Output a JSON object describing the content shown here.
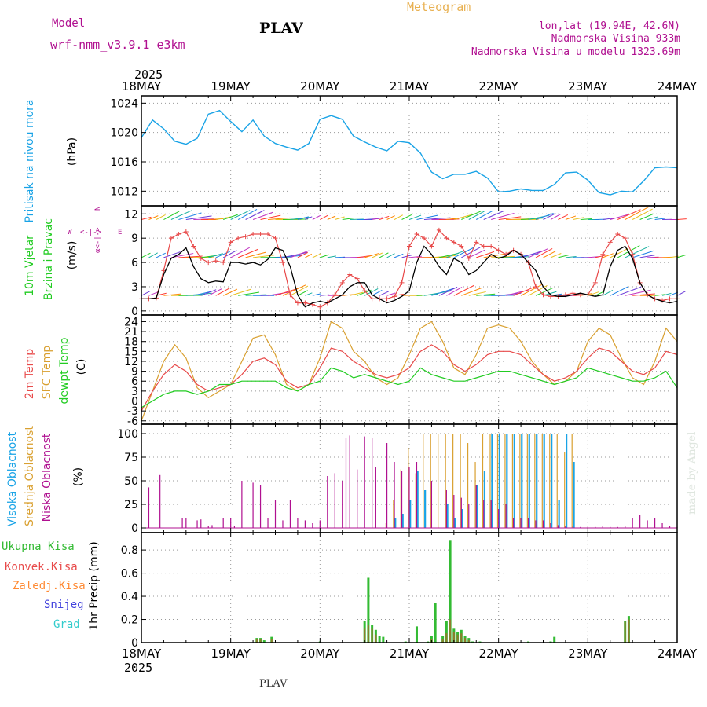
{
  "header": {
    "model_label": "Model",
    "model_name": "wrf-nmm_v3.9.1  e3km",
    "station": "PLAV",
    "title": "Meteogram",
    "lonlat": "lon,lat (19.94E, 42.6N)",
    "elev": "Nadmorska Visina 933m",
    "elev_model": "Nadmorska Visina u modelu 1323.69m",
    "footer_station": "PLAV",
    "credit": "made by Angel"
  },
  "colors": {
    "pressure": "#19a3e6",
    "temp": "#e84a4a",
    "sfc": "#d9a030",
    "dew": "#22cc22",
    "wind": "#000000",
    "gust": "#e84a4a",
    "high": "#19a3e6",
    "mid": "#d9a030",
    "low": "#b01090",
    "total": "#33bb33",
    "conv": "#e84a4a",
    "frz": "#ff8a33",
    "snow": "#4444dd",
    "grad": "#33cccc",
    "wind_label": "#22cc22",
    "dir": "#b01090"
  },
  "chart_data": [
    {
      "type": "line",
      "id": "pressure",
      "title": "Pritisak na nivou mora",
      "ylabel": "(hPa)",
      "ylim": [
        1010,
        1025
      ],
      "yticks": [
        1012,
        1016,
        1020,
        1024
      ],
      "x": [
        0,
        3,
        6,
        9,
        12,
        15,
        18,
        21,
        24,
        27,
        30,
        33,
        36,
        39,
        42,
        45,
        48,
        51,
        54,
        57,
        60,
        63,
        66,
        69,
        72,
        75,
        78,
        81,
        84,
        87,
        90,
        93,
        96,
        99,
        102,
        105,
        108,
        111,
        114,
        117,
        120,
        123,
        126,
        129,
        132,
        135,
        138,
        141,
        144
      ],
      "values": [
        1019.3,
        1021.7,
        1020.5,
        1018.8,
        1018.4,
        1019.2,
        1022.5,
        1023.0,
        1021.5,
        1020.1,
        1021.7,
        1019.5,
        1018.5,
        1018.0,
        1017.6,
        1018.5,
        1021.8,
        1022.3,
        1021.8,
        1019.5,
        1018.7,
        1018.0,
        1017.5,
        1018.8,
        1018.6,
        1017.2,
        1014.6,
        1013.7,
        1014.3,
        1014.3,
        1014.7,
        1013.8,
        1011.9,
        1012.0,
        1012.3,
        1012.1,
        1012.1,
        1012.9,
        1014.5,
        1014.6,
        1013.5,
        1011.8,
        1011.5,
        1012.0,
        1011.9,
        1013.4,
        1015.2,
        1015.3,
        1015.2
      ]
    },
    {
      "type": "line",
      "id": "wind",
      "title": "10m Vjetar Brzina i Pravac",
      "ylabel": "(m/s)",
      "ylim": [
        -0.5,
        13
      ],
      "yticks": [
        0,
        3,
        6,
        9,
        12
      ],
      "direction_legend": [
        "N",
        "S",
        "W",
        "E"
      ],
      "x": [
        0,
        2,
        4,
        6,
        8,
        10,
        12,
        14,
        16,
        18,
        20,
        22,
        24,
        26,
        28,
        30,
        32,
        34,
        36,
        38,
        40,
        42,
        44,
        46,
        48,
        50,
        52,
        54,
        56,
        58,
        60,
        62,
        64,
        66,
        68,
        70,
        72,
        74,
        76,
        78,
        80,
        82,
        84,
        86,
        88,
        90,
        92,
        94,
        96,
        98,
        100,
        102,
        104,
        106,
        108,
        110,
        112,
        114,
        116,
        118,
        120,
        122,
        124,
        126,
        128,
        130,
        132,
        134,
        136,
        138,
        140,
        142,
        144
      ],
      "series": [
        {
          "name": "Brzina",
          "values": [
            1.5,
            1.5,
            1.6,
            4.5,
            6.5,
            7.0,
            7.8,
            5.5,
            4.0,
            3.5,
            3.7,
            3.6,
            6.0,
            6.0,
            5.8,
            6.0,
            5.7,
            6.4,
            7.8,
            7.5,
            5.5,
            2.0,
            0.5,
            1.0,
            1.2,
            1.0,
            1.5,
            2.0,
            3.0,
            3.5,
            3.5,
            2.0,
            1.5,
            1.0,
            1.3,
            1.8,
            2.5,
            6.0,
            8.0,
            7.0,
            5.5,
            4.5,
            6.5,
            6.0,
            4.5,
            5.0,
            6.0,
            7.0,
            6.5,
            6.8,
            7.5,
            7.0,
            6.0,
            5.0,
            3.0,
            2.0,
            1.8,
            1.8,
            2.0,
            2.2,
            2.0,
            1.8,
            2.0,
            5.5,
            7.5,
            8.0,
            6.5,
            3.5,
            2.0,
            1.5,
            1.2,
            1.0,
            1.2
          ]
        },
        {
          "name": "Udar",
          "values": [
            1.5,
            1.5,
            1.6,
            5.0,
            9.0,
            9.5,
            9.8,
            8.0,
            6.5,
            6.0,
            6.2,
            6.0,
            8.5,
            9.0,
            9.2,
            9.5,
            9.5,
            9.5,
            9.0,
            6.0,
            2.0,
            1.0,
            1.0,
            0.8,
            0.5,
            1.0,
            2.0,
            3.5,
            4.5,
            4.0,
            2.5,
            1.5,
            1.5,
            1.5,
            1.8,
            3.5,
            8.0,
            9.5,
            9.0,
            8.0,
            10.0,
            9.0,
            8.5,
            8.0,
            6.5,
            8.5,
            8.0,
            8.0,
            7.5,
            7.0,
            7.5,
            7.0,
            6.0,
            3.0,
            2.0,
            1.8,
            1.8,
            2.0,
            2.2,
            2.0,
            2.0,
            3.5,
            7.0,
            8.5,
            9.5,
            9.0,
            7.0,
            3.5,
            2.0,
            1.5,
            1.3,
            1.5,
            1.5
          ]
        }
      ],
      "arrow_rows_speed": [
        11.3,
        6.6,
        1.9
      ]
    },
    {
      "type": "line",
      "id": "temperature",
      "title": "2m Temp / SFC Temp / dewpt Temp",
      "ylabel": "(C)",
      "ylim": [
        -7,
        26
      ],
      "yticks": [
        -6,
        -3,
        0,
        3,
        6,
        9,
        12,
        15,
        18,
        21,
        24
      ],
      "x": [
        0,
        3,
        6,
        9,
        12,
        15,
        18,
        21,
        24,
        27,
        30,
        33,
        36,
        39,
        42,
        45,
        48,
        51,
        54,
        57,
        60,
        63,
        66,
        69,
        72,
        75,
        78,
        81,
        84,
        87,
        90,
        93,
        96,
        99,
        102,
        105,
        108,
        111,
        114,
        117,
        120,
        123,
        126,
        129,
        132,
        135,
        138,
        141,
        144
      ],
      "series": [
        {
          "name": "2m Temp",
          "values": [
            -3,
            3,
            8,
            11,
            9,
            5,
            3,
            4,
            5,
            8,
            12,
            13,
            11,
            6,
            4,
            5,
            10,
            16,
            15,
            12,
            10,
            8,
            7,
            8,
            10,
            15,
            17,
            15,
            11,
            9,
            11,
            14,
            15,
            15,
            14,
            11,
            8,
            6,
            7,
            9,
            13,
            16,
            15,
            12,
            9,
            8,
            10,
            15,
            14
          ]
        },
        {
          "name": "SFC Temp",
          "values": [
            -6,
            3,
            12,
            17,
            13,
            4,
            1,
            3,
            5,
            12,
            19,
            20,
            14,
            5,
            3,
            5,
            13,
            24,
            22,
            15,
            12,
            7,
            5,
            7,
            14,
            22,
            24,
            18,
            10,
            8,
            14,
            22,
            23,
            22,
            18,
            12,
            8,
            5,
            6,
            9,
            18,
            22,
            20,
            13,
            7,
            5,
            12,
            22,
            18
          ]
        },
        {
          "name": "dewpt Temp",
          "values": [
            -2,
            0,
            2,
            3,
            3,
            2,
            3,
            5,
            5,
            6,
            6,
            6,
            6,
            4,
            3,
            5,
            6,
            10,
            9,
            7,
            8,
            7,
            6,
            5,
            6,
            10,
            8,
            7,
            6,
            6,
            7,
            8,
            9,
            9,
            8,
            7,
            6,
            5,
            6,
            7,
            10,
            9,
            8,
            7,
            6,
            6,
            7,
            9,
            4
          ]
        }
      ]
    },
    {
      "type": "bar",
      "id": "clouds",
      "title": "Visoka / Srednja / Niska Oblacnost",
      "ylabel": "(%)",
      "ylim": [
        -5,
        110
      ],
      "yticks": [
        0,
        25,
        50,
        75,
        100
      ],
      "series": [
        {
          "name": "Niska Oblacnost",
          "x": [
            2,
            5,
            11,
            12,
            15,
            16,
            18,
            19,
            22,
            24,
            25,
            27,
            30,
            32,
            34,
            36,
            38,
            40,
            42,
            44,
            46,
            48,
            50,
            52,
            54,
            55,
            56,
            58,
            60,
            62,
            63,
            66,
            68,
            70,
            72,
            74,
            78,
            82,
            84,
            86,
            88,
            90,
            92,
            94,
            96,
            98,
            100,
            102,
            104,
            106,
            108,
            110,
            112,
            114,
            116,
            118,
            120,
            122,
            124,
            126,
            128,
            130,
            132,
            134,
            136,
            138,
            140,
            142,
            144
          ],
          "values": [
            43,
            56,
            10,
            10,
            8,
            9,
            2,
            3,
            10,
            10,
            2,
            50,
            48,
            45,
            10,
            30,
            8,
            30,
            10,
            8,
            5,
            8,
            55,
            58,
            50,
            95,
            98,
            62,
            97,
            95,
            65,
            90,
            70,
            60,
            65,
            70,
            50,
            40,
            35,
            32,
            25,
            45,
            30,
            30,
            20,
            25,
            10,
            10,
            10,
            8,
            8,
            5,
            3,
            2,
            2,
            1,
            1,
            1,
            2,
            1,
            1,
            2,
            10,
            14,
            8,
            10,
            5,
            2,
            1
          ]
        },
        {
          "name": "Srednja Oblacnost",
          "x": [
            66,
            68,
            70,
            72,
            74,
            76,
            78,
            80,
            82,
            84,
            86,
            88,
            90,
            92,
            94,
            96,
            98,
            100,
            102,
            104,
            106,
            108,
            110,
            112,
            114,
            116
          ],
          "values": [
            5,
            30,
            62,
            85,
            58,
            100,
            100,
            100,
            100,
            100,
            100,
            90,
            70,
            100,
            100,
            100,
            100,
            100,
            100,
            100,
            100,
            100,
            100,
            100,
            80,
            100
          ]
        },
        {
          "name": "Visoka Oblacnost",
          "x": [
            68,
            70,
            72,
            74,
            76,
            82,
            84,
            86,
            90,
            92,
            94,
            96,
            98,
            100,
            102,
            104,
            106,
            108,
            110,
            112,
            114,
            116
          ],
          "values": [
            10,
            15,
            30,
            60,
            40,
            25,
            10,
            20,
            45,
            60,
            100,
            100,
            100,
            100,
            100,
            100,
            100,
            100,
            100,
            30,
            100,
            70
          ]
        }
      ]
    },
    {
      "type": "bar",
      "id": "precip",
      "title": "Ukupna Kisa / Konvek.Kisa / Zaledj.Kisa / Snijeg / Grad",
      "ylabel": "1hr Precip (mm)",
      "ylim": [
        0,
        0.95
      ],
      "yticks": [
        0,
        0.2,
        0.4,
        0.6,
        0.8
      ],
      "series": [
        {
          "name": "Ukupna Kisa",
          "x": [
            31,
            32,
            33,
            35,
            48,
            60,
            61,
            62,
            63,
            64,
            65,
            71,
            74,
            77,
            78,
            79,
            81,
            82,
            83,
            84,
            85,
            86,
            87,
            88,
            89,
            91,
            104,
            110,
            111,
            130,
            131
          ],
          "values": [
            0.04,
            0.04,
            0.02,
            0.05,
            0.01,
            0.19,
            0.56,
            0.15,
            0.11,
            0.06,
            0.05,
            0.01,
            0.14,
            0.01,
            0.06,
            0.34,
            0.06,
            0.19,
            0.88,
            0.12,
            0.09,
            0.11,
            0.06,
            0.04,
            0.01,
            0.01,
            0.01,
            0.01,
            0.05,
            0.19,
            0.23
          ]
        },
        {
          "name": "Konvek.Kisa",
          "x": [
            31,
            32,
            35,
            60,
            61,
            62,
            63,
            78,
            81,
            82,
            83,
            84,
            85,
            86,
            87,
            88,
            130,
            131
          ],
          "values": [
            0.03,
            0.03,
            0.03,
            0.12,
            0.15,
            0.12,
            0.07,
            0.03,
            0.03,
            0.08,
            0.2,
            0.09,
            0.07,
            0.08,
            0.04,
            0.02,
            0.18,
            0.2
          ]
        }
      ]
    }
  ],
  "xaxis": {
    "top_year": "2025",
    "bottom_year": "2025",
    "labels": [
      "18MAY",
      "19MAY",
      "20MAY",
      "21MAY",
      "22MAY",
      "23MAY",
      "24MAY"
    ]
  },
  "panels": {
    "pressure": {
      "label": "Pritisak na nivou mora",
      "unit": "(hPa)"
    },
    "wind": {
      "l1": "10m Vjetar",
      "l2": "Brzina i Pravac",
      "unit": "(m/s)"
    },
    "temp": {
      "l1": "2m Temp",
      "l2": "SFC Temp",
      "l3": "dewpt Temp",
      "unit": "(C)"
    },
    "cloud": {
      "l1": "Visoka Oblacnost",
      "l2": "Srednja Oblacnost",
      "l3": "Niska Oblacnost",
      "unit": "(%)"
    },
    "precip": {
      "l1": "Ukupna Kisa",
      "l2": "Konvek.Kisa",
      "l3": "Zaledj.Kisa",
      "l4": "Snijeg",
      "l5": "Grad",
      "unit": "1hr Precip (mm)"
    }
  },
  "wind_legend": {
    "w": "W",
    "e": "E",
    "n": "N",
    "s": "S",
    "arrows": "<-|->",
    "line1": "α<-|->"
  }
}
